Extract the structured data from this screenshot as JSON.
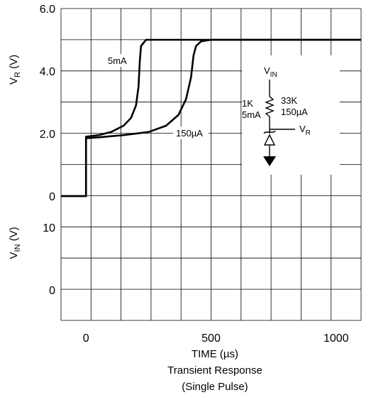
{
  "chart_data": {
    "type": "line",
    "caption": [
      "Transient Response",
      "(Single Pulse)"
    ],
    "xlabel": "TIME (µs)",
    "x_ticks": [
      "0",
      "500",
      "1000"
    ],
    "xlim": [
      -100,
      1100
    ],
    "vr_panel": {
      "ylabel": "V",
      "ylabel_sub": "R",
      "ylabel_unit": " (V)",
      "y_ticks": [
        "6.0",
        "4.0",
        "2.0",
        "0"
      ],
      "ylim": [
        0,
        6
      ],
      "series": [
        {
          "name": "5mA",
          "points": [
            [
              -100,
              0
            ],
            [
              0,
              0
            ],
            [
              0,
              1.9
            ],
            [
              50,
              1.95
            ],
            [
              100,
              2.05
            ],
            [
              150,
              2.25
            ],
            [
              180,
              2.5
            ],
            [
              200,
              2.9
            ],
            [
              210,
              3.5
            ],
            [
              215,
              4.3
            ],
            [
              220,
              4.8
            ],
            [
              240,
              5.0
            ],
            [
              1100,
              5.0
            ]
          ]
        },
        {
          "name": "150µA",
          "points": [
            [
              -100,
              0
            ],
            [
              0,
              0
            ],
            [
              0,
              1.85
            ],
            [
              50,
              1.88
            ],
            [
              150,
              1.95
            ],
            [
              250,
              2.05
            ],
            [
              320,
              2.25
            ],
            [
              370,
              2.6
            ],
            [
              400,
              3.1
            ],
            [
              420,
              3.8
            ],
            [
              430,
              4.5
            ],
            [
              440,
              4.8
            ],
            [
              460,
              4.95
            ],
            [
              500,
              5.0
            ],
            [
              1100,
              5.0
            ]
          ]
        }
      ]
    },
    "vin_panel": {
      "ylabel": "V",
      "ylabel_sub": "IN",
      "ylabel_unit": " (V)",
      "y_ticks": [
        "10",
        "0"
      ],
      "ylim": [
        0,
        10
      ]
    },
    "inset": {
      "vin_label": "V",
      "vin_sub": "IN",
      "r1": [
        "1K",
        "5mA"
      ],
      "r2": [
        "33K",
        "150µA"
      ],
      "vr_label": "V",
      "vr_sub": "R"
    }
  }
}
